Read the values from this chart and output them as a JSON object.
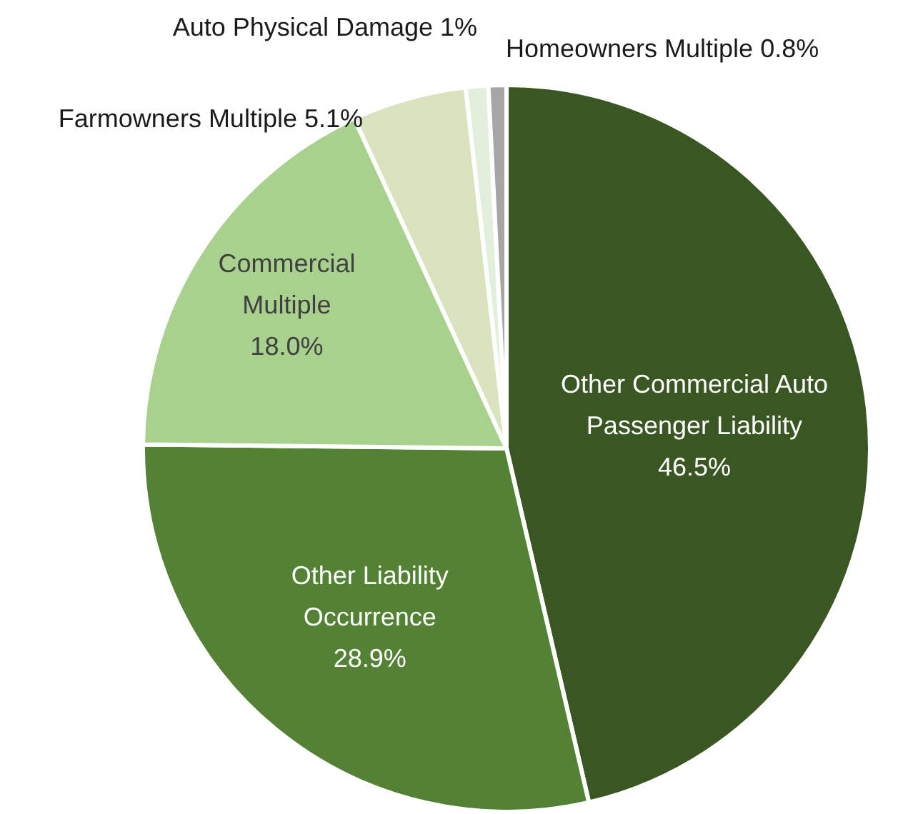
{
  "chart_data": {
    "type": "pie",
    "categories": [
      "Other Commercial Auto Passenger Liability",
      "Other Liability Occurrence",
      "Commercial Multiple",
      "Farmowners Multiple",
      "Auto Physical Damage",
      "Homeowners Multiple"
    ],
    "values": [
      46.5,
      28.9,
      18.0,
      5.1,
      1,
      0.8
    ],
    "value_labels": [
      "46.5%",
      "28.9%",
      "18.0%",
      "5.1%",
      "1%",
      "0.8%"
    ],
    "colors": [
      "#3a5723",
      "#548235",
      "#a9d18e",
      "#d9e4bf",
      "#e2efda",
      "#a6a6a6"
    ],
    "legend": false
  }
}
